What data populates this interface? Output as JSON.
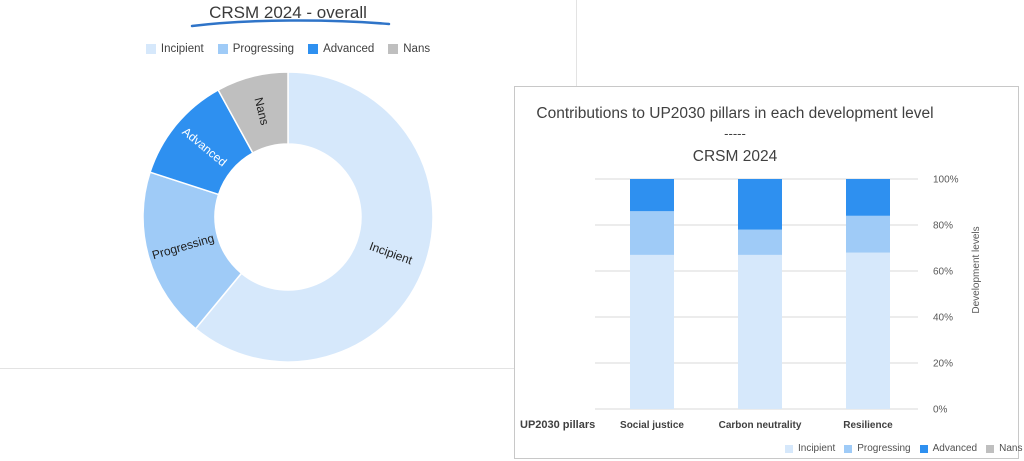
{
  "colors": {
    "incipient": "#d6e8fb",
    "progressing": "#9fcbf7",
    "advanced": "#2e90f0",
    "nans": "#bfbfbf"
  },
  "donut": {
    "title": "CRSM 2024 - overall",
    "legend": [
      "Incipient",
      "Progressing",
      "Advanced",
      "Nans"
    ]
  },
  "stacked": {
    "title_line1": "Contributions to UP2030 pillars in each development level",
    "title_line2": "-----",
    "title_line3": "CRSM 2024",
    "axis_title": "Development levels",
    "category_axis_label": "UP2030 pillars",
    "legend": [
      "Incipient",
      "Progressing",
      "Advanced",
      "Nans"
    ]
  },
  "chart_data": [
    {
      "type": "pie",
      "title": "CRSM 2024 - overall",
      "donut": true,
      "labels": [
        "Incipient",
        "Progressing",
        "Advanced",
        "Nans"
      ],
      "values": [
        61,
        19,
        12,
        8
      ]
    },
    {
      "type": "bar",
      "stacked": true,
      "title": "Contributions to UP2030 pillars in each development level ----- CRSM 2024",
      "categories": [
        "Social justice",
        "Carbon neutrality",
        "Resilience"
      ],
      "series": [
        {
          "name": "Incipient",
          "values": [
            67,
            67,
            68
          ]
        },
        {
          "name": "Progressing",
          "values": [
            19,
            11,
            16
          ]
        },
        {
          "name": "Advanced",
          "values": [
            14,
            22,
            16
          ]
        },
        {
          "name": "Nans",
          "values": [
            0,
            0,
            0
          ]
        }
      ],
      "yticks": [
        "0%",
        "20%",
        "40%",
        "60%",
        "80%",
        "100%"
      ],
      "ylim": [
        0,
        100
      ],
      "ylabel": "Development levels",
      "xlabel": "UP2030 pillars",
      "grid": true,
      "legend_position": "bottom"
    }
  ]
}
